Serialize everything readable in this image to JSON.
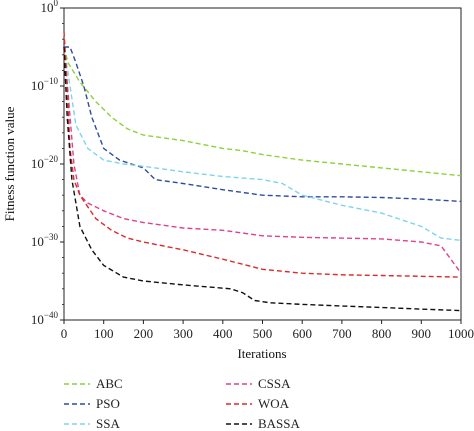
{
  "chart_data": {
    "type": "line",
    "title": "",
    "xlabel": "Iterations",
    "ylabel": "Fitness function value",
    "xlim": [
      0,
      1000
    ],
    "ylim_log10": [
      -40,
      0
    ],
    "yscale": "log",
    "grid": false,
    "legend_position": "bottom",
    "x_ticks": [
      "0",
      "100",
      "200",
      "300",
      "400",
      "500",
      "600",
      "700",
      "800",
      "900",
      "1000"
    ],
    "y_ticks": [
      {
        "base": "10",
        "exp": "0"
      },
      {
        "base": "10",
        "exp": "−10"
      },
      {
        "base": "10",
        "exp": "−20"
      },
      {
        "base": "10",
        "exp": "−30"
      },
      {
        "base": "10",
        "exp": "−40"
      }
    ],
    "series": [
      {
        "name": "ABC",
        "color": "#8fd13a",
        "points": [
          [
            0,
            -5
          ],
          [
            10,
            -7
          ],
          [
            40,
            -9.5
          ],
          [
            80,
            -12
          ],
          [
            120,
            -14
          ],
          [
            160,
            -15.5
          ],
          [
            200,
            -16.3
          ],
          [
            300,
            -17
          ],
          [
            400,
            -18
          ],
          [
            450,
            -18.3
          ],
          [
            500,
            -18.8
          ],
          [
            600,
            -19.5
          ],
          [
            700,
            -20
          ],
          [
            800,
            -20.5
          ],
          [
            900,
            -21
          ],
          [
            1000,
            -21.5
          ]
        ]
      },
      {
        "name": "PSO",
        "color": "#2f4d9a",
        "points": [
          [
            0,
            -5
          ],
          [
            15,
            -5
          ],
          [
            30,
            -7
          ],
          [
            50,
            -10
          ],
          [
            70,
            -14
          ],
          [
            100,
            -18
          ],
          [
            140,
            -19.5
          ],
          [
            200,
            -20.5
          ],
          [
            230,
            -22
          ],
          [
            300,
            -22.5
          ],
          [
            400,
            -23.3
          ],
          [
            500,
            -24
          ],
          [
            600,
            -24.2
          ],
          [
            700,
            -24.2
          ],
          [
            800,
            -24.3
          ],
          [
            900,
            -24.5
          ],
          [
            1000,
            -24.8
          ]
        ]
      },
      {
        "name": "SSA",
        "color": "#7fd4ec",
        "points": [
          [
            0,
            -5
          ],
          [
            15,
            -10
          ],
          [
            30,
            -15
          ],
          [
            60,
            -18
          ],
          [
            100,
            -19.5
          ],
          [
            150,
            -20
          ],
          [
            200,
            -20.3
          ],
          [
            300,
            -21
          ],
          [
            400,
            -21.6
          ],
          [
            500,
            -22
          ],
          [
            550,
            -22.5
          ],
          [
            600,
            -24
          ],
          [
            700,
            -25.3
          ],
          [
            800,
            -26.3
          ],
          [
            900,
            -28
          ],
          [
            950,
            -29.5
          ],
          [
            1000,
            -29.8
          ]
        ]
      },
      {
        "name": "CSSA",
        "color": "#e0418c",
        "points": [
          [
            0,
            -5
          ],
          [
            12,
            -12
          ],
          [
            25,
            -20
          ],
          [
            40,
            -24
          ],
          [
            60,
            -25
          ],
          [
            100,
            -26
          ],
          [
            150,
            -27
          ],
          [
            200,
            -27.5
          ],
          [
            300,
            -28.2
          ],
          [
            400,
            -28.5
          ],
          [
            500,
            -29.2
          ],
          [
            600,
            -29.4
          ],
          [
            700,
            -29.5
          ],
          [
            800,
            -29.6
          ],
          [
            900,
            -30
          ],
          [
            950,
            -30.5
          ],
          [
            1000,
            -34
          ]
        ]
      },
      {
        "name": "WOA",
        "color": "#d92b2b",
        "points": [
          [
            0,
            -3
          ],
          [
            8,
            -10
          ],
          [
            15,
            -18
          ],
          [
            25,
            -22
          ],
          [
            40,
            -24
          ],
          [
            80,
            -27
          ],
          [
            120,
            -28.5
          ],
          [
            160,
            -29.5
          ],
          [
            200,
            -30
          ],
          [
            300,
            -31
          ],
          [
            400,
            -32.2
          ],
          [
            500,
            -33.5
          ],
          [
            600,
            -34
          ],
          [
            700,
            -34.2
          ],
          [
            800,
            -34.3
          ],
          [
            900,
            -34.4
          ],
          [
            1000,
            -34.5
          ]
        ]
      },
      {
        "name": "BASSA",
        "color": "#111111",
        "points": [
          [
            0,
            -5
          ],
          [
            8,
            -14
          ],
          [
            20,
            -22
          ],
          [
            40,
            -28
          ],
          [
            70,
            -31
          ],
          [
            100,
            -33
          ],
          [
            150,
            -34.5
          ],
          [
            200,
            -35
          ],
          [
            300,
            -35.5
          ],
          [
            420,
            -36
          ],
          [
            450,
            -36.5
          ],
          [
            480,
            -37.5
          ],
          [
            520,
            -37.8
          ],
          [
            600,
            -38
          ],
          [
            700,
            -38.2
          ],
          [
            800,
            -38.4
          ],
          [
            900,
            -38.6
          ],
          [
            1000,
            -38.8
          ]
        ]
      }
    ]
  }
}
